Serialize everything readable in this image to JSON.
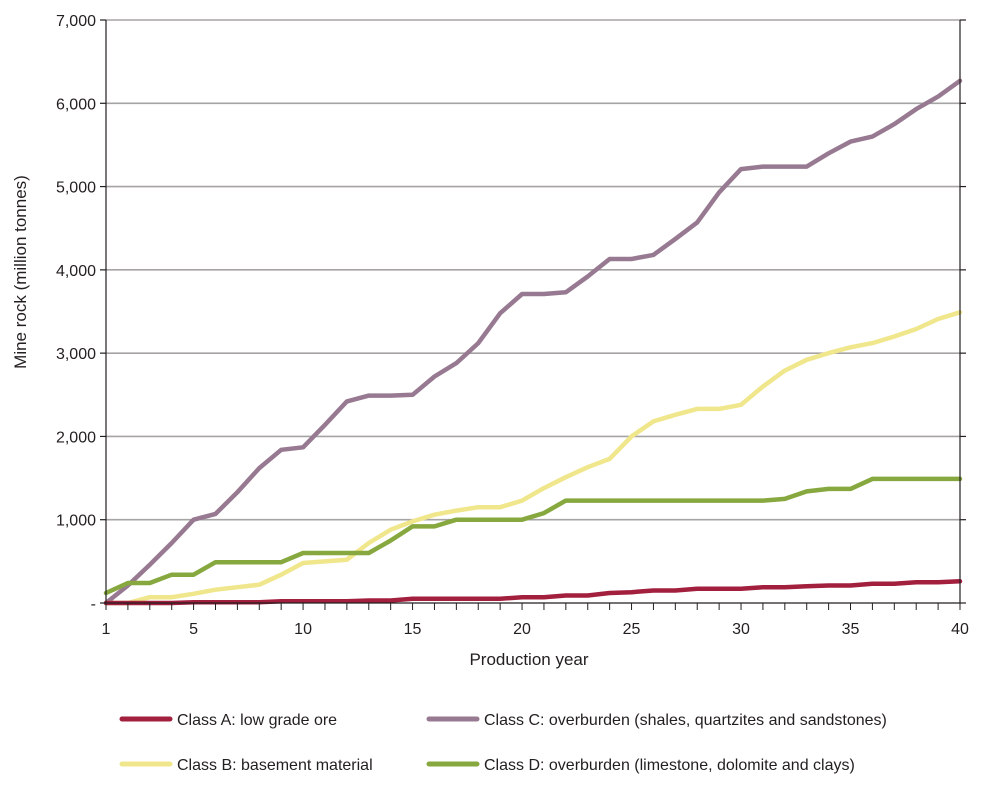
{
  "chart_data": {
    "type": "line",
    "title": "",
    "xlabel": "Production year",
    "ylabel": "Mine rock (million tonnes)",
    "xlim": [
      1,
      40
    ],
    "ylim": [
      0,
      7000
    ],
    "x_ticks": [
      1,
      5,
      10,
      15,
      20,
      25,
      30,
      35,
      40
    ],
    "x_tick_labels": [
      "1",
      "5",
      "10",
      "15",
      "20",
      "25",
      "30",
      "35",
      "40"
    ],
    "y_ticks": [
      0,
      1000,
      2000,
      3000,
      4000,
      5000,
      6000,
      7000
    ],
    "y_tick_labels": [
      "-",
      "1,000",
      "2,000",
      "3,000",
      "4,000",
      "5,000",
      "6,000",
      "7,000"
    ],
    "grid": "horizontal",
    "legend_position": "bottom",
    "x": [
      1,
      2,
      3,
      4,
      5,
      6,
      7,
      8,
      9,
      10,
      11,
      12,
      13,
      14,
      15,
      16,
      17,
      18,
      19,
      20,
      21,
      22,
      23,
      24,
      25,
      26,
      27,
      28,
      29,
      30,
      31,
      32,
      33,
      34,
      35,
      36,
      37,
      38,
      39,
      40
    ],
    "series": [
      {
        "name": "Class A: low grade ore",
        "color": "#a31f3e",
        "values": [
          0,
          0,
          0,
          0,
          10,
          10,
          10,
          10,
          20,
          20,
          20,
          20,
          30,
          30,
          50,
          50,
          50,
          50,
          50,
          70,
          70,
          90,
          90,
          120,
          130,
          150,
          150,
          170,
          170,
          170,
          190,
          190,
          200,
          210,
          210,
          230,
          230,
          250,
          250,
          260
        ]
      },
      {
        "name": "Class B: basement material",
        "color": "#f0e68c",
        "values": [
          0,
          0,
          70,
          70,
          110,
          160,
          190,
          220,
          340,
          480,
          500,
          520,
          720,
          880,
          980,
          1060,
          1110,
          1150,
          1150,
          1230,
          1380,
          1510,
          1630,
          1730,
          2000,
          2180,
          2260,
          2330,
          2330,
          2380,
          2600,
          2790,
          2920,
          3000,
          3070,
          3120,
          3200,
          3290,
          3410,
          3490
        ]
      },
      {
        "name": "Class C: overburden (shales, quartzites and sandstones)",
        "color": "#977a91",
        "values": [
          0,
          210,
          460,
          720,
          1000,
          1070,
          1330,
          1620,
          1840,
          1870,
          2140,
          2420,
          2490,
          2490,
          2500,
          2720,
          2880,
          3120,
          3480,
          3710,
          3710,
          3730,
          3920,
          4130,
          4130,
          4180,
          4370,
          4570,
          4930,
          5210,
          5240,
          5240,
          5240,
          5400,
          5540,
          5600,
          5750,
          5930,
          6080,
          6270
        ]
      },
      {
        "name": "Class D: overburden (limestone, dolomite and clays)",
        "color": "#86a83e",
        "values": [
          120,
          240,
          240,
          340,
          340,
          490,
          490,
          490,
          490,
          600,
          600,
          600,
          600,
          750,
          920,
          920,
          1000,
          1000,
          1000,
          1000,
          1080,
          1230,
          1230,
          1230,
          1230,
          1230,
          1230,
          1230,
          1230,
          1230,
          1230,
          1250,
          1340,
          1370,
          1370,
          1490,
          1490,
          1490,
          1490,
          1490
        ]
      }
    ]
  },
  "colors": {
    "gridline": "#a6a3a4",
    "axis": "#231f20",
    "text": "#231f20"
  }
}
